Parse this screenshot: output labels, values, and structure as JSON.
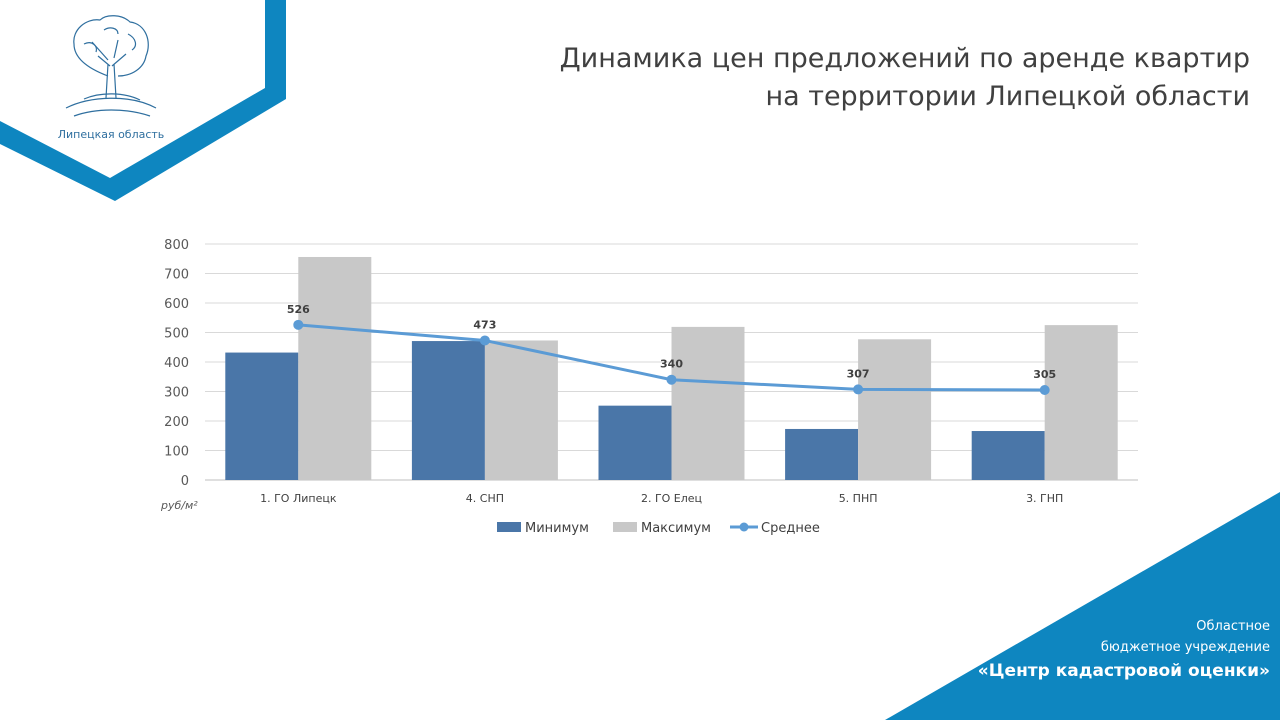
{
  "header": {
    "title_line1": "Динамика цен предложений по аренде квартир",
    "title_line2": "на территории Липецкой области",
    "logo_caption": "Липецкая область"
  },
  "footer": {
    "org_line1": "Областное",
    "org_line2": "бюджетное учреждение",
    "org_line3": "«Центр кадастровой оценки»"
  },
  "colors": {
    "brand": "#0e86c0",
    "minimum": "#4a76a8",
    "maximum": "#c8c8c8",
    "average": "#5b9bd5"
  },
  "icons": {
    "logo": "tree-logo-icon"
  },
  "chart_data": {
    "type": "bar",
    "categories": [
      "1. ГО Липецк",
      "4. СНП",
      "2. ГО Елец",
      "5. ПНП",
      "3. ГНП"
    ],
    "series": [
      {
        "name": "Минимум",
        "type": "bar",
        "values": [
          432,
          471,
          252,
          173,
          166
        ]
      },
      {
        "name": "Максимум",
        "type": "bar",
        "values": [
          756,
          473,
          519,
          477,
          525
        ]
      },
      {
        "name": "Среднее",
        "type": "line",
        "values": [
          526,
          473,
          340,
          307,
          305
        ],
        "data_labels": [
          "526",
          "473",
          "340",
          "307",
          "305"
        ]
      }
    ],
    "y_ticks": [
      "0",
      "100",
      "200",
      "300",
      "400",
      "500",
      "600",
      "700",
      "800"
    ],
    "ylim": [
      0,
      800
    ],
    "unit_label": "руб/м²",
    "grid": true,
    "legend": "bottom"
  }
}
